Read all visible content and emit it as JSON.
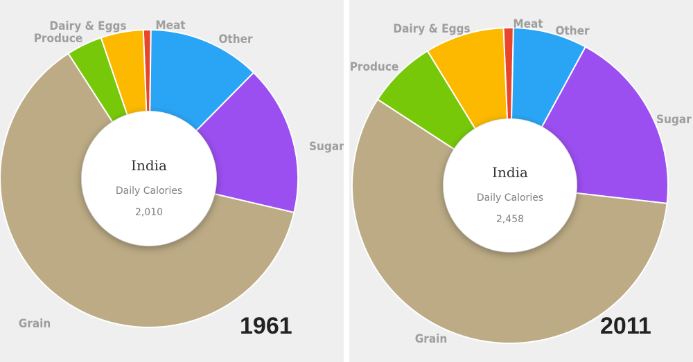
{
  "chart_data": [
    {
      "type": "donut",
      "year": "1961",
      "center": {
        "title": "India",
        "subtitle": "Daily Calories",
        "value": "2,010"
      },
      "slices": [
        {
          "name": "Meat",
          "value": 0.8,
          "color": "#e8452c"
        },
        {
          "name": "Other",
          "value": 11.9,
          "color": "#2aa5f5"
        },
        {
          "name": "Sugar",
          "value": 15.9,
          "color": "#9b4ff0"
        },
        {
          "name": "Grain",
          "value": 60.8,
          "color": "#bcab85"
        },
        {
          "name": "Produce",
          "value": 3.8,
          "color": "#78c80a"
        },
        {
          "name": "Dairy & Eggs",
          "value": 4.5,
          "color": "#fdb900"
        }
      ]
    },
    {
      "type": "donut",
      "year": "2011",
      "center": {
        "title": "India",
        "subtitle": "Daily Calories",
        "value": "2,458"
      },
      "slices": [
        {
          "name": "Meat",
          "value": 1.0,
          "color": "#e8452c"
        },
        {
          "name": "Other",
          "value": 7.5,
          "color": "#2aa5f5"
        },
        {
          "name": "Sugar &",
          "value": 18.7,
          "color": "#9b4ff0"
        },
        {
          "name": "Grain",
          "value": 56.8,
          "color": "#bcab85"
        },
        {
          "name": "Produce",
          "value": 7.0,
          "color": "#78c80a"
        },
        {
          "name": "Dairy & Eggs",
          "value": 8.0,
          "color": "#fdb900"
        }
      ]
    }
  ],
  "panels": {
    "left": {
      "year_text": "1961"
    },
    "right": {
      "year_text": "2011"
    }
  }
}
